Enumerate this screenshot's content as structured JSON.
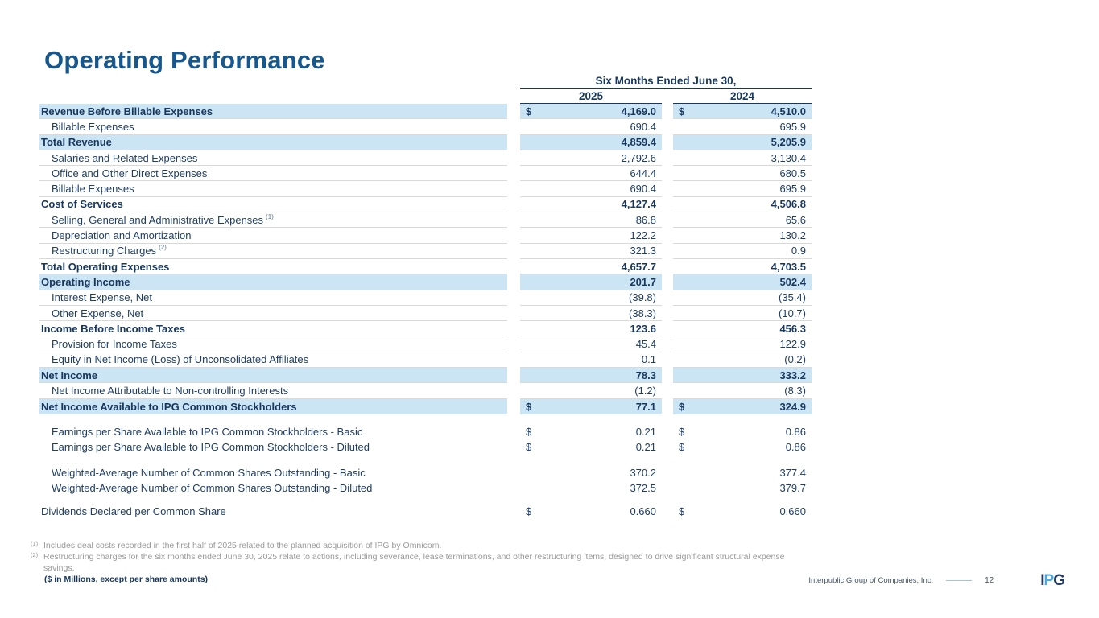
{
  "slide": {
    "title": "Operating Performance",
    "units_note": "($ in Millions, except per share amounts)",
    "footer_company": "Interpublic Group of Companies, Inc.",
    "page_number": "12",
    "logo_letters": {
      "i": "I",
      "p": "P",
      "g": "G"
    }
  },
  "colors": {
    "title_blue": "#16578E",
    "table_navy": "#17375E",
    "row_highlight": "#CBE5F5",
    "row_border": "#D9D9D9",
    "footnote_gray": "#9A9A9A",
    "footer_divider_blue": "#9DC3E6"
  },
  "table": {
    "period_header": "Six Months Ended June 30,",
    "col_2025": "2025",
    "col_2024": "2024",
    "rows": [
      {
        "label": "Revenue Before Billable Expenses",
        "bold": true,
        "highlight": true,
        "dollar": true,
        "border": true,
        "indent": false,
        "v2025": "4,169.0",
        "v2024": "4,510.0"
      },
      {
        "label": "Billable Expenses",
        "bold": false,
        "highlight": false,
        "dollar": false,
        "border": true,
        "indent": true,
        "v2025": "690.4",
        "v2024": "695.9"
      },
      {
        "label": "Total Revenue",
        "bold": true,
        "highlight": true,
        "dollar": false,
        "border": true,
        "indent": false,
        "v2025": "4,859.4",
        "v2024": "5,205.9"
      },
      {
        "label": "Salaries and Related Expenses",
        "bold": false,
        "highlight": false,
        "dollar": false,
        "border": true,
        "indent": true,
        "v2025": "2,792.6",
        "v2024": "3,130.4"
      },
      {
        "label": "Office and Other Direct Expenses",
        "bold": false,
        "highlight": false,
        "dollar": false,
        "border": true,
        "indent": true,
        "v2025": "644.4",
        "v2024": "680.5"
      },
      {
        "label": "Billable Expenses",
        "bold": false,
        "highlight": false,
        "dollar": false,
        "border": true,
        "indent": true,
        "v2025": "690.4",
        "v2024": "695.9"
      },
      {
        "label": "Cost of Services",
        "bold": true,
        "highlight": false,
        "dollar": false,
        "border": true,
        "indent": false,
        "v2025": "4,127.4",
        "v2024": "4,506.8"
      },
      {
        "label": "Selling, General and Administrative Expenses",
        "sup": "(1)",
        "bold": false,
        "highlight": false,
        "dollar": false,
        "border": true,
        "indent": true,
        "v2025": "86.8",
        "v2024": "65.6"
      },
      {
        "label": "Depreciation and Amortization",
        "bold": false,
        "highlight": false,
        "dollar": false,
        "border": true,
        "indent": true,
        "v2025": "122.2",
        "v2024": "130.2"
      },
      {
        "label": "Restructuring Charges",
        "sup": "(2)",
        "bold": false,
        "highlight": false,
        "dollar": false,
        "border": true,
        "indent": true,
        "v2025": "321.3",
        "v2024": "0.9"
      },
      {
        "label": "Total Operating Expenses",
        "bold": true,
        "highlight": false,
        "dollar": false,
        "border": true,
        "indent": false,
        "v2025": "4,657.7",
        "v2024": "4,703.5"
      },
      {
        "label": "Operating Income",
        "bold": true,
        "highlight": true,
        "dollar": false,
        "border": true,
        "indent": false,
        "v2025": "201.7",
        "v2024": "502.4"
      },
      {
        "label": "Interest Expense, Net",
        "bold": false,
        "highlight": false,
        "dollar": false,
        "border": true,
        "indent": true,
        "v2025": "(39.8)",
        "v2024": "(35.4)"
      },
      {
        "label": "Other Expense, Net",
        "bold": false,
        "highlight": false,
        "dollar": false,
        "border": true,
        "indent": true,
        "v2025": "(38.3)",
        "v2024": "(10.7)"
      },
      {
        "label": "Income Before Income Taxes",
        "bold": true,
        "highlight": false,
        "dollar": false,
        "border": true,
        "indent": false,
        "v2025": "123.6",
        "v2024": "456.3"
      },
      {
        "label": "Provision for Income Taxes",
        "bold": false,
        "highlight": false,
        "dollar": false,
        "border": true,
        "indent": true,
        "v2025": "45.4",
        "v2024": "122.9"
      },
      {
        "label": "Equity in Net Income (Loss) of Unconsolidated Affiliates",
        "bold": false,
        "highlight": false,
        "dollar": false,
        "border": true,
        "indent": true,
        "v2025": "0.1",
        "v2024": "(0.2)"
      },
      {
        "label": "Net Income",
        "bold": true,
        "highlight": true,
        "dollar": false,
        "border": true,
        "indent": false,
        "v2025": "78.3",
        "v2024": "333.2"
      },
      {
        "label": "Net Income Attributable to Non-controlling Interests",
        "bold": false,
        "highlight": false,
        "dollar": false,
        "border": true,
        "indent": true,
        "v2025": "(1.2)",
        "v2024": "(8.3)"
      },
      {
        "label": "Net Income Available to IPG Common Stockholders",
        "bold": true,
        "highlight": true,
        "dollar": true,
        "border": false,
        "indent": false,
        "v2025": "77.1",
        "v2024": "324.9"
      },
      {
        "label": "Earnings per Share Available to IPG Common Stockholders - Basic",
        "spacer_before": 12,
        "bold": false,
        "highlight": false,
        "dollar": true,
        "border": false,
        "indent": true,
        "v2025": "0.21",
        "v2024": "0.86"
      },
      {
        "label": "Earnings per Share Available to IPG Common Stockholders - Diluted",
        "bold": false,
        "highlight": false,
        "dollar": true,
        "border": false,
        "indent": true,
        "v2025": "0.21",
        "v2024": "0.86"
      },
      {
        "label": "Weighted-Average Number of Common Shares Outstanding - Basic",
        "spacer_before": 12,
        "bold": false,
        "highlight": false,
        "dollar": false,
        "border": false,
        "indent": true,
        "v2025": "370.2",
        "v2024": "377.4"
      },
      {
        "label": "Weighted-Average Number of Common Shares Outstanding - Diluted",
        "bold": false,
        "highlight": false,
        "dollar": false,
        "border": false,
        "indent": true,
        "v2025": "372.5",
        "v2024": "379.7"
      },
      {
        "label": "Dividends Declared per Common Share",
        "spacer_before": 10,
        "bold": false,
        "highlight": false,
        "dollar": true,
        "border": false,
        "indent": false,
        "v2025": "0.660",
        "v2024": "0.660"
      }
    ]
  },
  "footnotes": [
    {
      "sup": "(1)",
      "text": "Includes deal costs recorded in the first half of 2025 related to the planned acquisition of IPG by Omnicom."
    },
    {
      "sup": "(2)",
      "text": "Restructuring charges for the six months ended June 30, 2025 relate to actions, including severance, lease terminations, and other restructuring items, designed to drive significant structural expense savings."
    }
  ]
}
